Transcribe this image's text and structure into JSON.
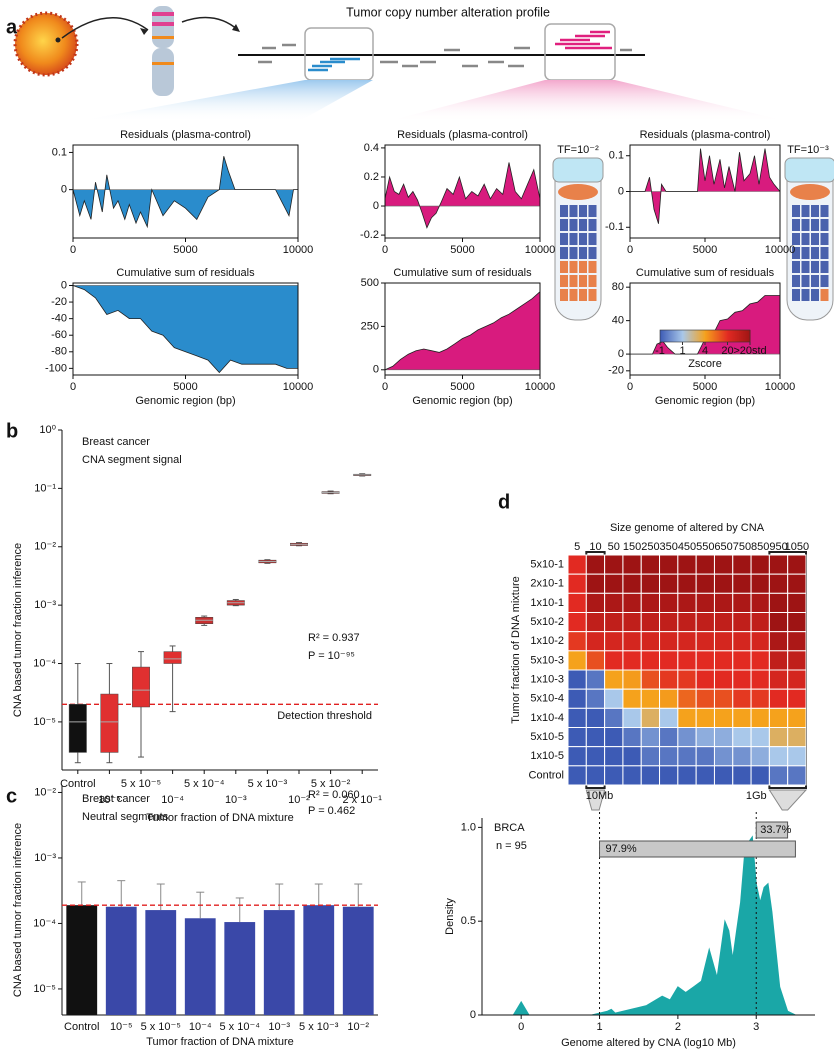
{
  "panel_labels": [
    "a",
    "b",
    "c",
    "d"
  ],
  "figure_a": {
    "title": "Tumor copy number alteration profile",
    "tf_labels": [
      "TF=10⁻²",
      "TF=10⁻³"
    ]
  },
  "chart_data": [
    {
      "type": "area",
      "title": "Residuals (plasma-control)",
      "color": "#2a8ccc",
      "x": [
        0,
        300,
        500,
        800,
        1000,
        1300,
        1500,
        1800,
        2000,
        2300,
        2500,
        2800,
        3000,
        3300,
        3500,
        4000,
        4500,
        5000,
        5500,
        6000,
        6500,
        6700,
        6900,
        7200,
        8000,
        9000,
        9600,
        9800,
        10000
      ],
      "values": [
        0,
        -0.07,
        -0.03,
        -0.08,
        0.02,
        -0.06,
        0.04,
        -0.05,
        -0.03,
        -0.08,
        -0.04,
        -0.09,
        -0.06,
        -0.1,
        0,
        -0.07,
        -0.03,
        -0.05,
        -0.08,
        -0.02,
        0,
        0.09,
        0.05,
        0,
        0,
        0,
        -0.07,
        0,
        0
      ],
      "xlim": [
        0,
        10000
      ],
      "xticks": [
        0,
        5000,
        10000
      ],
      "ylim": [
        -0.13,
        0.12
      ],
      "yticks": [
        0,
        0.1
      ]
    },
    {
      "type": "area",
      "title": "Cumulative sum of residuals",
      "xlabel": "Genomic region (bp)",
      "color": "#2a8ccc",
      "x": [
        0,
        500,
        1000,
        1500,
        2000,
        2500,
        3000,
        3500,
        4000,
        4500,
        5000,
        5500,
        6000,
        6500,
        7000,
        7500,
        8000,
        9000,
        9500,
        10000
      ],
      "values": [
        0,
        -5,
        -15,
        -35,
        -30,
        -40,
        -40,
        -55,
        -60,
        -75,
        -80,
        -85,
        -90,
        -105,
        -90,
        -95,
        -95,
        -95,
        -100,
        -100
      ],
      "xlim": [
        0,
        10000
      ],
      "xticks": [
        0,
        5000,
        10000
      ],
      "ylim": [
        -108,
        3
      ],
      "yticks": [
        -100,
        -80,
        -60,
        -40,
        -20,
        0
      ]
    },
    {
      "type": "area",
      "title": "Residuals (plasma-control)",
      "color": "#d81b7e",
      "x": [
        0,
        300,
        600,
        900,
        1200,
        1500,
        1800,
        2100,
        2400,
        2700,
        3000,
        3300,
        3600,
        4000,
        4400,
        4800,
        5200,
        5600,
        6000,
        6400,
        6800,
        7200,
        7600,
        8000,
        8400,
        8800,
        9200,
        9600,
        10000
      ],
      "values": [
        0.05,
        0.2,
        0.1,
        0.08,
        0.15,
        0.06,
        0.1,
        0.04,
        -0.05,
        -0.15,
        -0.08,
        -0.05,
        0.02,
        0.12,
        0.08,
        0.2,
        0.05,
        0.1,
        0.07,
        0.15,
        0.05,
        0.12,
        0.08,
        0.3,
        0.1,
        0.05,
        0.15,
        0.25,
        0.05
      ],
      "xlim": [
        0,
        10000
      ],
      "xticks": [
        0,
        5000,
        10000
      ],
      "ylim": [
        -0.22,
        0.42
      ],
      "yticks": [
        -0.2,
        0,
        0.2,
        0.4
      ]
    },
    {
      "type": "area",
      "title": "Cumulative sum of residuals",
      "xlabel": "Genomic region (bp)",
      "color": "#d81b7e",
      "x": [
        0,
        500,
        1000,
        1500,
        2000,
        2500,
        3000,
        3500,
        4000,
        4500,
        5000,
        5500,
        6000,
        6500,
        7000,
        7500,
        8000,
        8500,
        9000,
        9500,
        10000
      ],
      "values": [
        0,
        20,
        60,
        90,
        110,
        120,
        110,
        100,
        120,
        150,
        180,
        200,
        230,
        250,
        270,
        300,
        320,
        350,
        380,
        410,
        450
      ],
      "xlim": [
        0,
        10000
      ],
      "xticks": [
        0,
        5000,
        10000
      ],
      "ylim": [
        -30,
        500
      ],
      "yticks": [
        0,
        250,
        500
      ]
    },
    {
      "type": "area",
      "title": "Residuals (plasma-control)",
      "color": "#d81b7e",
      "x": [
        0,
        1000,
        1300,
        1600,
        1900,
        2100,
        2400,
        3000,
        3500,
        4000,
        4500,
        4700,
        5000,
        5300,
        5600,
        6000,
        6300,
        6600,
        7000,
        7300,
        7600,
        8000,
        8300,
        8600,
        9000,
        9300,
        9600,
        10000
      ],
      "values": [
        0,
        0,
        0.04,
        -0.05,
        -0.09,
        0.02,
        0,
        0,
        0,
        0,
        0,
        0.12,
        0.03,
        0.1,
        0.02,
        0.09,
        0.01,
        0.07,
        0,
        0.11,
        0.03,
        0.05,
        0.1,
        0.02,
        0.12,
        0.04,
        0.02,
        0
      ],
      "xlim": [
        0,
        10000
      ],
      "xticks": [
        0,
        5000,
        10000
      ],
      "ylim": [
        -0.13,
        0.13
      ],
      "yticks": [
        -0.1,
        0,
        0.1
      ]
    },
    {
      "type": "area",
      "title": "Cumulative sum of residuals",
      "xlabel": "Genomic region (bp)",
      "color": "#d81b7e",
      "x": [
        0,
        1500,
        1800,
        2200,
        2500,
        3000,
        4500,
        5000,
        5500,
        6000,
        6500,
        7000,
        7500,
        8000,
        8500,
        9000,
        9500,
        10000
      ],
      "values": [
        0,
        0,
        12,
        15,
        8,
        0,
        0,
        18,
        22,
        40,
        42,
        50,
        52,
        60,
        62,
        70,
        70,
        70
      ],
      "xlim": [
        0,
        10000
      ],
      "xticks": [
        0,
        5000,
        10000
      ],
      "ylim": [
        -25,
        85
      ],
      "yticks": [
        -20,
        0,
        40,
        80
      ]
    },
    {
      "type": "box",
      "title": "Breast cancer",
      "subtitle": "CNA segment signal",
      "xlabel": "Tumor fraction of DNA mixture",
      "ylabel": "CNA based tumor fraction inference",
      "categories": [
        "Control",
        "10⁻⁵",
        "5 x 10⁻⁵",
        "10⁻⁴",
        "5 x 10⁻⁴",
        "10⁻³",
        "5 x 10⁻³",
        "10⁻²",
        "5 x 10⁻²",
        "2 x 10⁻¹"
      ],
      "whislo": [
        2e-06,
        2e-06,
        2.5e-06,
        1.5e-05,
        0.00045,
        0.00098,
        0.0052,
        0.0104,
        0.081,
        0.163
      ],
      "q1": [
        3e-06,
        3e-06,
        1.8e-05,
        0.0001,
        0.00048,
        0.001,
        0.0053,
        0.0105,
        0.082,
        0.165
      ],
      "median": [
        1e-05,
        1e-05,
        3.5e-05,
        0.00012,
        0.00055,
        0.0011,
        0.0056,
        0.011,
        0.085,
        0.17
      ],
      "q3": [
        2e-05,
        3e-05,
        8.7e-05,
        0.00016,
        0.00062,
        0.0012,
        0.0059,
        0.0115,
        0.088,
        0.175
      ],
      "whishi": [
        0.0001,
        0.0001,
        0.00016,
        0.0002,
        0.00065,
        0.00125,
        0.006,
        0.0118,
        0.09,
        0.178
      ],
      "colors": [
        "#111111",
        "#e03030",
        "#e03030",
        "#e03030",
        "#c83030",
        "#c83030",
        "#c83030",
        "#c83030",
        "#c83030",
        "#c83030"
      ],
      "log_y": true,
      "ylim": [
        1.5e-06,
        1
      ],
      "yticks": [
        {
          "value": 1,
          "label": "10⁰"
        },
        {
          "value": 0.1,
          "label": "10⁻¹"
        },
        {
          "value": 0.01,
          "label": "10⁻²"
        },
        {
          "value": 0.001,
          "label": "10⁻³"
        },
        {
          "value": 0.0001,
          "label": "10⁻⁴"
        },
        {
          "value": 1e-05,
          "label": "10⁻⁵"
        }
      ],
      "threshold": 2e-05,
      "threshold_label": "Detection threshold",
      "annotations": [
        "R² = 0.937",
        "P = 10⁻⁹⁵"
      ]
    },
    {
      "type": "bar",
      "title": "Breast cancer",
      "subtitle": "Neutral segments",
      "xlabel": "Tumor fraction of DNA mixture",
      "ylabel": "CNA based tumor fraction inference",
      "categories": [
        "Control",
        "10⁻⁵",
        "5 x 10⁻⁵",
        "10⁻⁴",
        "5 x 10⁻⁴",
        "10⁻³",
        "5 x 10⁻³",
        "10⁻²"
      ],
      "values": [
        0.00019,
        0.00018,
        0.00016,
        0.00012,
        0.000105,
        0.00016,
        0.00019,
        0.00018
      ],
      "errors": [
        0.00024,
        0.00027,
        0.00024,
        0.00018,
        0.00014,
        0.00024,
        0.00021,
        0.00022
      ],
      "colors": [
        "#111111",
        "#3a48a8",
        "#3a48a8",
        "#3a48a8",
        "#3a48a8",
        "#3a48a8",
        "#3a48a8",
        "#3a48a8"
      ],
      "log_y": true,
      "ylim": [
        4e-06,
        0.013
      ],
      "yticks": [
        {
          "value": 0.01,
          "label": "10⁻²"
        },
        {
          "value": 0.001,
          "label": "10⁻³"
        },
        {
          "value": 0.0001,
          "label": "10⁻⁴"
        },
        {
          "value": 1e-05,
          "label": "10⁻⁵"
        }
      ],
      "threshold": 0.00019,
      "annotations": [
        "R² = 0.060",
        "P = 0.462"
      ]
    },
    {
      "type": "heatmap",
      "title": "Size genome of altered by CNA",
      "ylabel": "Tumor fraction of DNA mixture",
      "columns": [
        "5",
        "10",
        "50",
        "150",
        "250",
        "350",
        "450",
        "550",
        "650",
        "750",
        "850",
        "950",
        "1050"
      ],
      "rows": [
        "5x10-1",
        "2x10-1",
        "1x10-1",
        "5x10-2",
        "1x10-2",
        "5x10-3",
        "1x10-3",
        "5x10-4",
        "1x10-4",
        "5x10-5",
        "1x10-5",
        "Control"
      ],
      "values": [
        [
          20,
          30,
          30,
          30,
          30,
          30,
          30,
          30,
          30,
          30,
          30,
          30,
          30
        ],
        [
          20,
          30,
          30,
          30,
          30,
          30,
          30,
          30,
          30,
          30,
          30,
          30,
          30
        ],
        [
          20,
          28,
          28,
          28,
          28,
          28,
          28,
          28,
          28,
          28,
          28,
          30,
          30
        ],
        [
          20,
          25,
          25,
          25,
          25,
          25,
          25,
          25,
          25,
          25,
          25,
          30,
          30
        ],
        [
          18,
          22,
          22,
          22,
          22,
          22,
          22,
          22,
          22,
          22,
          22,
          28,
          28
        ],
        [
          4,
          15,
          20,
          20,
          20,
          20,
          20,
          20,
          20,
          20,
          20,
          25,
          25
        ],
        [
          -1,
          -0.5,
          4,
          5,
          15,
          18,
          18,
          20,
          20,
          20,
          20,
          22,
          22
        ],
        [
          -1,
          -0.5,
          1,
          4,
          4,
          5,
          12,
          15,
          15,
          18,
          18,
          20,
          20
        ],
        [
          -1,
          -1,
          -0.5,
          1,
          3,
          1,
          4,
          4,
          4,
          4,
          4,
          4,
          4
        ],
        [
          -1,
          -1,
          -1,
          -0.5,
          0,
          -0.5,
          0,
          0.5,
          0.5,
          1,
          1,
          3,
          3
        ],
        [
          -1,
          -1,
          -1,
          -1,
          -0.5,
          -0.5,
          -0.5,
          -0.5,
          0,
          0,
          0.5,
          1,
          1
        ],
        [
          -1,
          -1,
          -1,
          -1,
          -1,
          -1,
          -1,
          -1,
          -1,
          -1,
          -1,
          -0.5,
          -0.5
        ]
      ],
      "colorbar_label": "Zscore",
      "zticks": [
        -1,
        1,
        4,
        20,
        {
          "value": 30,
          "label": ">20std"
        }
      ],
      "zcolors": [
        "#3d5bb5",
        "#a9c8ea",
        "#f5a21c",
        "#e22a22",
        "#9e1414"
      ]
    },
    {
      "type": "density",
      "title": "BRCA",
      "subtitle": "n = 95",
      "color": "#1aa7a7",
      "xlabel": "Genome altered by CNA (log10 Mb)",
      "ylabel": "Density",
      "x": [
        -0.5,
        -0.1,
        0,
        0.1,
        0.3,
        0.9,
        1.1,
        1.15,
        1.2,
        1.4,
        1.6,
        1.8,
        1.9,
        2.0,
        2.1,
        2.2,
        2.3,
        2.4,
        2.5,
        2.6,
        2.65,
        2.7,
        2.75,
        2.8,
        2.85,
        2.9,
        2.95,
        3.0,
        3.05,
        3.1,
        3.15,
        3.2,
        3.3,
        3.4,
        3.5,
        3.75
      ],
      "values": [
        0,
        0,
        0.07,
        0,
        0,
        0,
        0.02,
        0.03,
        0.01,
        0.03,
        0.05,
        0.1,
        0.08,
        0.15,
        0.12,
        0.15,
        0.18,
        0.35,
        0.2,
        0.5,
        0.45,
        0.3,
        0.45,
        0.6,
        0.85,
        0.92,
        0.95,
        0.7,
        0.6,
        0.68,
        0.7,
        0.55,
        0.15,
        0.02,
        0,
        0
      ],
      "xlim": [
        -0.5,
        3.75
      ],
      "xticks": [
        0,
        1,
        2,
        3
      ],
      "ylim": [
        0,
        1.05
      ],
      "yticks": [
        0,
        0.5,
        {
          "value": 1,
          "label": "1.0"
        }
      ],
      "vlines": [
        {
          "value": 1,
          "label": "10Mb"
        },
        {
          "value": 3,
          "label": "1Gb"
        }
      ],
      "spans": [
        {
          "from": 3,
          "to": 3.4,
          "label": "33.7%"
        },
        {
          "from": 1,
          "to": 3.5,
          "label": "97.9%"
        }
      ]
    }
  ]
}
